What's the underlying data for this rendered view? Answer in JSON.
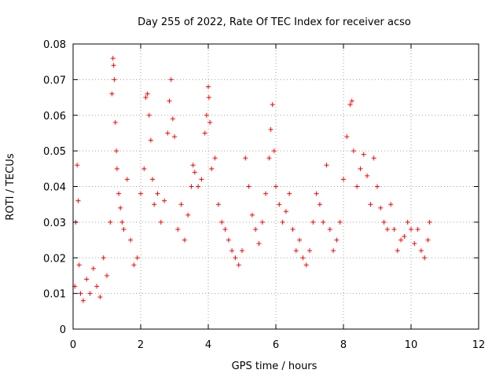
{
  "chart_data": {
    "type": "scatter",
    "title": "Day 255 of 2022, Rate Of TEC Index for receiver acso",
    "xlabel": "GPS time / hours",
    "ylabel": "ROTI / TECUs",
    "xlim": [
      0,
      12
    ],
    "ylim": [
      0,
      0.08
    ],
    "xticks": [
      "0",
      "2",
      "4",
      "6",
      "8",
      "10",
      "12"
    ],
    "yticks": [
      "0",
      "0.01",
      "0.02",
      "0.03",
      "0.04",
      "0.05",
      "0.06",
      "0.07",
      "0.08"
    ],
    "grid": true,
    "marker": "plus",
    "color": "#ff0000",
    "series": [
      {
        "x": [
          0.05,
          0.08,
          0.12,
          0.15,
          0.18,
          0.22,
          0.3,
          0.4,
          0.5,
          0.6,
          0.7,
          0.8,
          0.9,
          1.0,
          1.1,
          1.15,
          1.18,
          1.2,
          1.22,
          1.25,
          1.28,
          1.3,
          1.35,
          1.4,
          1.45,
          1.5,
          1.6,
          1.7,
          1.8,
          1.9,
          2.0,
          2.1,
          2.15,
          2.2,
          2.25,
          2.3,
          2.35,
          2.4,
          2.5,
          2.6,
          2.7,
          2.8,
          2.85,
          2.9,
          2.95,
          3.0,
          3.1,
          3.2,
          3.3,
          3.4,
          3.5,
          3.55,
          3.6,
          3.7,
          3.8,
          3.9,
          3.95,
          4.0,
          4.02,
          4.05,
          4.1,
          4.2,
          4.3,
          4.4,
          4.5,
          4.6,
          4.7,
          4.8,
          4.9,
          5.0,
          5.1,
          5.2,
          5.3,
          5.4,
          5.5,
          5.6,
          5.7,
          5.8,
          5.85,
          5.9,
          5.95,
          6.0,
          6.1,
          6.2,
          6.3,
          6.4,
          6.5,
          6.6,
          6.7,
          6.8,
          6.9,
          7.0,
          7.1,
          7.2,
          7.3,
          7.4,
          7.5,
          7.6,
          7.7,
          7.8,
          7.9,
          8.0,
          8.1,
          8.2,
          8.25,
          8.3,
          8.4,
          8.5,
          8.6,
          8.7,
          8.8,
          8.9,
          9.0,
          9.1,
          9.2,
          9.3,
          9.4,
          9.5,
          9.6,
          9.7,
          9.8,
          9.9,
          10.0,
          10.1,
          10.2,
          10.3,
          10.4,
          10.5,
          10.55
        ],
        "y": [
          0.012,
          0.03,
          0.046,
          0.036,
          0.018,
          0.01,
          0.008,
          0.014,
          0.01,
          0.017,
          0.012,
          0.009,
          0.02,
          0.015,
          0.03,
          0.066,
          0.076,
          0.074,
          0.07,
          0.058,
          0.05,
          0.045,
          0.038,
          0.034,
          0.03,
          0.028,
          0.042,
          0.025,
          0.018,
          0.02,
          0.038,
          0.045,
          0.065,
          0.066,
          0.06,
          0.053,
          0.042,
          0.035,
          0.038,
          0.03,
          0.036,
          0.055,
          0.064,
          0.07,
          0.059,
          0.054,
          0.028,
          0.035,
          0.025,
          0.032,
          0.04,
          0.046,
          0.044,
          0.04,
          0.042,
          0.055,
          0.06,
          0.068,
          0.065,
          0.058,
          0.045,
          0.048,
          0.035,
          0.03,
          0.028,
          0.025,
          0.022,
          0.02,
          0.018,
          0.022,
          0.048,
          0.04,
          0.032,
          0.028,
          0.024,
          0.03,
          0.038,
          0.048,
          0.056,
          0.063,
          0.05,
          0.04,
          0.035,
          0.03,
          0.033,
          0.038,
          0.028,
          0.022,
          0.025,
          0.02,
          0.018,
          0.022,
          0.03,
          0.038,
          0.035,
          0.03,
          0.046,
          0.028,
          0.022,
          0.025,
          0.03,
          0.042,
          0.054,
          0.063,
          0.064,
          0.05,
          0.04,
          0.045,
          0.049,
          0.043,
          0.035,
          0.048,
          0.04,
          0.034,
          0.03,
          0.028,
          0.035,
          0.028,
          0.022,
          0.025,
          0.026,
          0.03,
          0.028,
          0.024,
          0.028,
          0.022,
          0.02,
          0.025,
          0.03
        ]
      }
    ]
  }
}
